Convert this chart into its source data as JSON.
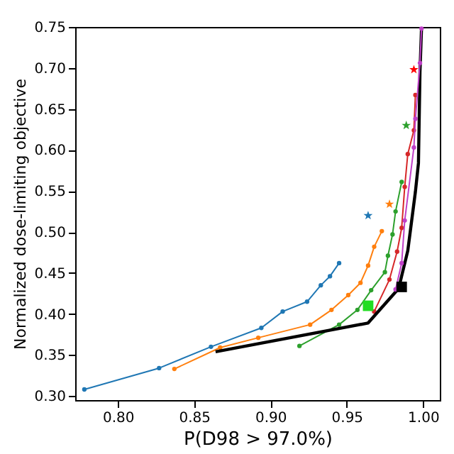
{
  "chart_data": {
    "type": "line",
    "xlabel": "P(D98 > 97.0%)",
    "ylabel": "Normalized dose-limiting objective",
    "xlim": [
      0.772,
      1.011
    ],
    "ylim": [
      0.295,
      0.75
    ],
    "xticks": [
      {
        "value": 0.8,
        "label": "0.80"
      },
      0.85,
      {
        "value": 0.9,
        "label": "0.90"
      },
      0.95,
      {
        "value": 1.0,
        "label": "1.00"
      }
    ],
    "yticks": [
      {
        "value": 0.3,
        "label": "0.30"
      },
      0.35,
      {
        "value": 0.4,
        "label": "0.40"
      },
      0.45,
      {
        "value": 0.5,
        "label": "0.50"
      },
      0.55,
      {
        "value": 0.6,
        "label": "0.60"
      },
      0.65,
      {
        "value": 0.7,
        "label": "0.70"
      },
      0.75
    ],
    "grid": false,
    "series": [
      {
        "color": "#1f77b4",
        "marker": "circle",
        "x": [
          0.778,
          0.827,
          0.861,
          0.894,
          0.908,
          0.924,
          0.933,
          0.939,
          0.945
        ],
        "values": [
          0.308,
          0.334,
          0.36,
          0.383,
          0.403,
          0.415,
          0.435,
          0.446,
          0.462
        ]
      },
      {
        "color": "#ff7f0e",
        "marker": "circle",
        "x": [
          0.837,
          0.867,
          0.892,
          0.926,
          0.94,
          0.951,
          0.959,
          0.964,
          0.968,
          0.973
        ],
        "values": [
          0.333,
          0.359,
          0.371,
          0.387,
          0.405,
          0.423,
          0.438,
          0.459,
          0.482,
          0.501
        ]
      },
      {
        "color": "#2ca02c",
        "marker": "circle",
        "x": [
          0.919,
          0.945,
          0.957,
          0.966,
          0.975,
          0.977,
          0.98,
          0.982,
          0.986
        ],
        "values": [
          0.361,
          0.387,
          0.405,
          0.429,
          0.451,
          0.471,
          0.497,
          0.525,
          0.561
        ]
      },
      {
        "color": "#d62728",
        "marker": "circle",
        "x": [
          0.968,
          0.978,
          0.983,
          0.986,
          0.988,
          0.99,
          0.994,
          0.995
        ],
        "values": [
          0.403,
          0.442,
          0.476,
          0.505,
          0.555,
          0.595,
          0.624,
          0.667
        ]
      },
      {
        "color": "#000000",
        "marker": "none",
        "x": [
          0.864,
          0.964,
          0.984,
          0.99,
          0.995,
          0.997,
          0.998,
          0.999
        ],
        "values": [
          0.354,
          0.389,
          0.431,
          0.477,
          0.549,
          0.584,
          0.695,
          0.748
        ]
      },
      {
        "color": "#c040c8",
        "marker": "circle",
        "x": [
          0.982,
          0.986,
          0.988,
          0.994,
          0.995,
          0.998,
          0.999
        ],
        "values": [
          0.43,
          0.462,
          0.514,
          0.603,
          0.638,
          0.706,
          0.748
        ]
      },
      {
        "type": "scatter",
        "color": "#1f77b4",
        "marker": "star",
        "x": [
          0.964
        ],
        "values": [
          0.52
        ]
      },
      {
        "type": "scatter",
        "color": "#ff7f0e",
        "marker": "star",
        "x": [
          0.978
        ],
        "values": [
          0.534
        ]
      },
      {
        "type": "scatter",
        "color": "#2ca02c",
        "marker": "star",
        "x": [
          0.989
        ],
        "values": [
          0.63
        ]
      },
      {
        "type": "scatter",
        "color": "#ff0000",
        "marker": "star",
        "x": [
          0.994
        ],
        "values": [
          0.698
        ]
      },
      {
        "type": "scatter",
        "color": "#22dd22",
        "marker": "square",
        "x": [
          0.964
        ],
        "values": [
          0.41
        ]
      },
      {
        "type": "scatter",
        "color": "#000000",
        "marker": "square",
        "x": [
          0.986
        ],
        "values": [
          0.433
        ]
      }
    ]
  }
}
